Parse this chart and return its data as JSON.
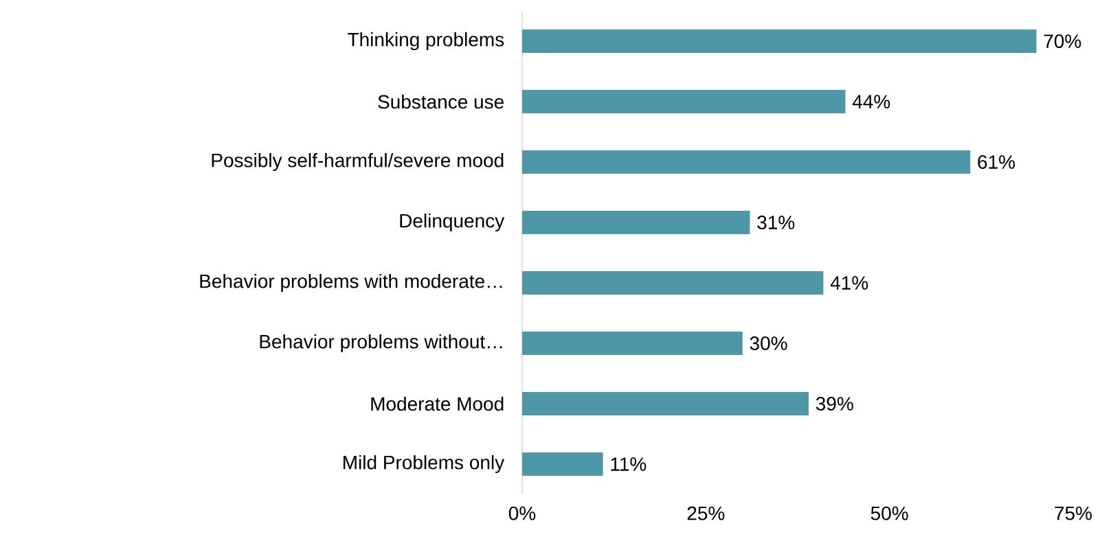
{
  "chart_data": {
    "type": "bar",
    "orientation": "horizontal",
    "categories": [
      "Thinking problems",
      "Substance use",
      "Possibly self-harmful/severe mood",
      "Delinquency",
      "Behavior problems with moderate…",
      "Behavior problems without…",
      "Moderate Mood",
      "Mild Problems only"
    ],
    "values": [
      70,
      44,
      61,
      31,
      41,
      30,
      39,
      11
    ],
    "value_labels": [
      "70%",
      "44%",
      "61%",
      "31%",
      "41%",
      "30%",
      "39%",
      "11%"
    ],
    "color": "#4e97a6",
    "xlim": [
      0,
      75
    ],
    "xticks": [
      {
        "value": 0,
        "label": "0%"
      },
      {
        "value": 25,
        "label": "25%"
      },
      {
        "value": 50,
        "label": "50%"
      },
      {
        "value": 75,
        "label": "75%"
      }
    ]
  }
}
